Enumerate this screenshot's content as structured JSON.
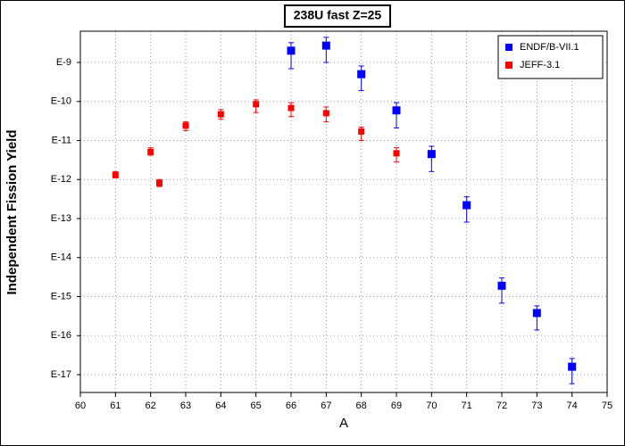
{
  "chart_data": {
    "type": "scatter",
    "title": "238U fast Z=25",
    "x_label": "A",
    "y_label": "Independent Fission Yield",
    "log_y": true,
    "grid": true,
    "legend": "upper right",
    "xlim": [
      60,
      75
    ],
    "xticks": [
      60,
      61,
      62,
      63,
      64,
      65,
      66,
      67,
      68,
      69,
      70,
      71,
      72,
      73,
      74,
      75
    ],
    "ylim": [
      3.5e-18,
      6.3e-09
    ],
    "yticks": [
      {
        "value": 1e-09,
        "label": "E-9"
      },
      {
        "value": 1e-10,
        "label": "E-10"
      },
      {
        "value": 1e-11,
        "label": "E-11"
      },
      {
        "value": 1e-12,
        "label": "E-12"
      },
      {
        "value": 1e-13,
        "label": "E-13"
      },
      {
        "value": 1e-14,
        "label": "E-14"
      },
      {
        "value": 1e-15,
        "label": "E-15"
      },
      {
        "value": 1e-16,
        "label": "E-16"
      },
      {
        "value": 1e-17,
        "label": "E-17"
      }
    ],
    "series": [
      {
        "name": "ENDF/B-VII.1",
        "color": "#0000ff",
        "x": [
          66,
          67,
          68,
          69,
          70,
          71,
          72,
          73,
          74
        ],
        "values": [
          2e-09,
          2.7e-09,
          5e-10,
          5.9e-11,
          4.5e-12,
          2.2e-13,
          1.9e-15,
          3.8e-16,
          1.6e-17
        ],
        "upper": [
          3.2e-09,
          4.4e-09,
          8.1e-10,
          9.3e-11,
          7.1e-12,
          3.6e-13,
          3e-15,
          5.8e-16,
          2.6e-17
        ],
        "lower": [
          6.9e-10,
          1e-09,
          1.9e-10,
          2.1e-11,
          1.6e-12,
          8.1e-14,
          6.8e-16,
          1.4e-16,
          5.9e-18
        ]
      },
      {
        "name": "JEFF-3.1",
        "color": "#ff0000",
        "x": [
          61,
          62,
          62.25,
          63,
          64,
          65,
          66,
          67,
          68,
          69
        ],
        "values": [
          1.3e-12,
          5.1e-12,
          8.1e-13,
          2.4e-11,
          4.7e-11,
          8.5e-11,
          6.8e-11,
          5e-11,
          1.7e-11,
          4.7e-12
        ],
        "upper": [
          1.6e-12,
          6.5e-12,
          1e-12,
          3e-11,
          6.2e-11,
          1.1e-10,
          9.3e-11,
          7.2e-11,
          2.2e-11,
          6.5e-12
        ],
        "lower": [
          1.1e-12,
          4.2e-12,
          6.6e-13,
          1.8e-11,
          3.5e-11,
          5.2e-11,
          4.1e-11,
          3e-11,
          1e-11,
          2.8e-12
        ]
      }
    ]
  }
}
